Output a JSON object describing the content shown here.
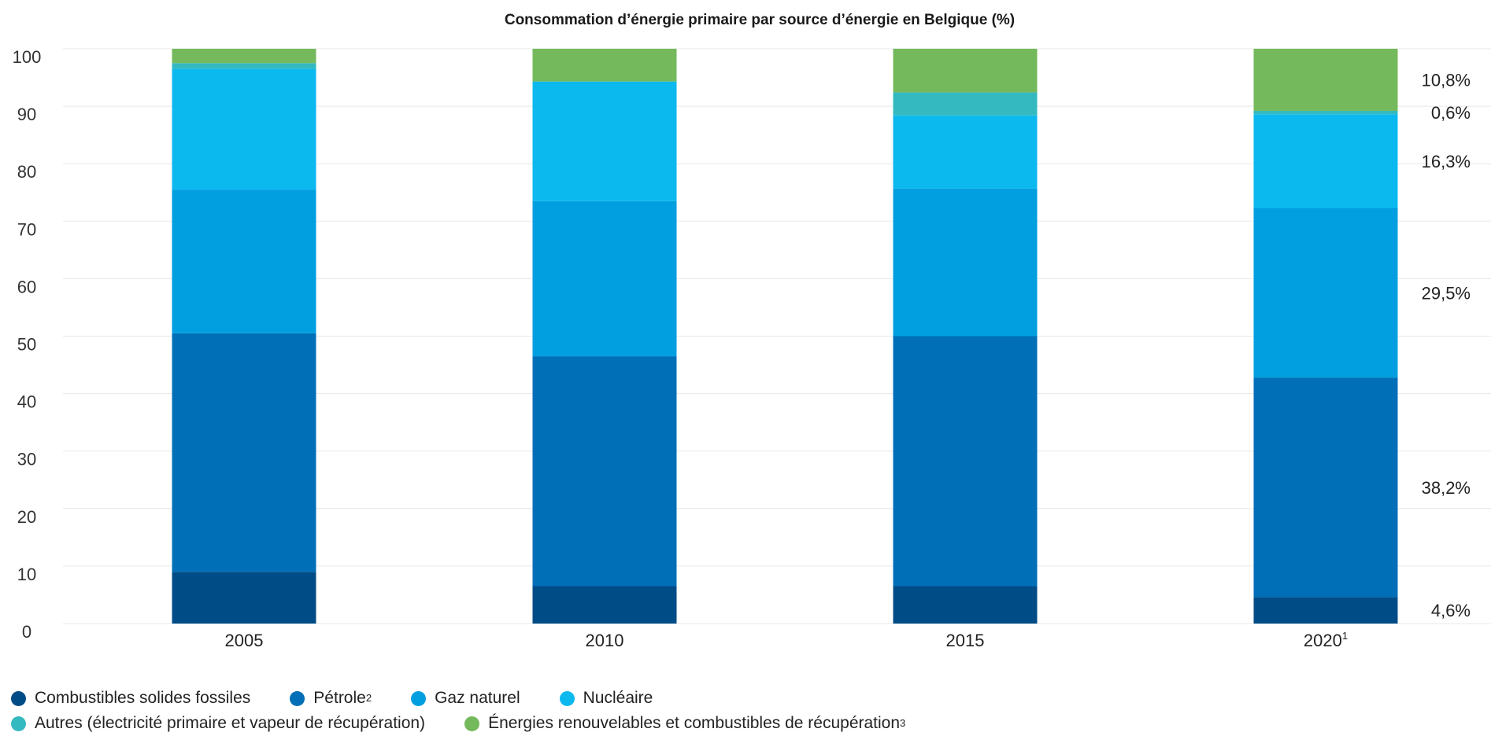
{
  "chart_data": {
    "type": "bar",
    "stacked": true,
    "title": "Consommation d’énergie primaire par source d’énergie en Belgique (%)",
    "ylim": [
      0,
      100
    ],
    "yticks": [
      "0",
      "10",
      "20",
      "30",
      "40",
      "50",
      "60",
      "70",
      "80",
      "90",
      "100"
    ],
    "grid": true,
    "legend_position": "bottom-left",
    "categories": [
      "2005",
      "2010",
      "2015",
      "2020"
    ],
    "category_superscripts": [
      "",
      "",
      "",
      "1"
    ],
    "series": [
      {
        "name": "Combustibles solides fossiles",
        "superscript": "",
        "color": "#004c86",
        "values": [
          9.0,
          6.5,
          6.5,
          4.6
        ]
      },
      {
        "name": "Pétrole",
        "superscript": "2",
        "color": "#006fb7",
        "values": [
          41.5,
          40.0,
          43.5,
          38.2
        ]
      },
      {
        "name": "Gaz naturel",
        "superscript": "",
        "color": "#019fe0",
        "values": [
          25.0,
          27.0,
          25.7,
          29.5
        ]
      },
      {
        "name": "Nucléaire",
        "superscript": "",
        "color": "#0cb9ef",
        "values": [
          21.0,
          20.8,
          12.7,
          16.3
        ]
      },
      {
        "name": "Autres (électricité primaire et vapeur de récupération)",
        "superscript": "",
        "color": "#35b9c1",
        "values": [
          1.0,
          0.0,
          4.0,
          0.6
        ]
      },
      {
        "name": "Énergies renouvelables et combustibles de récupération",
        "superscript": "3",
        "color": "#74b95b",
        "values": [
          2.5,
          5.7,
          7.6,
          10.8
        ]
      }
    ],
    "data_labels": [
      {
        "category": "2020",
        "series": "Combustibles solides fossiles",
        "text": "4,6%"
      },
      {
        "category": "2020",
        "series": "Pétrole",
        "text": "38,2%"
      },
      {
        "category": "2020",
        "series": "Gaz naturel",
        "text": "29,5%"
      },
      {
        "category": "2020",
        "series": "Nucléaire",
        "text": "16,3%"
      },
      {
        "category": "2020",
        "series": "Autres (électricité primaire et vapeur de récupération)",
        "text": "0,6%"
      },
      {
        "category": "2020",
        "series": "Énergies renouvelables et combustibles de récupération",
        "text": "10,8%"
      }
    ]
  }
}
